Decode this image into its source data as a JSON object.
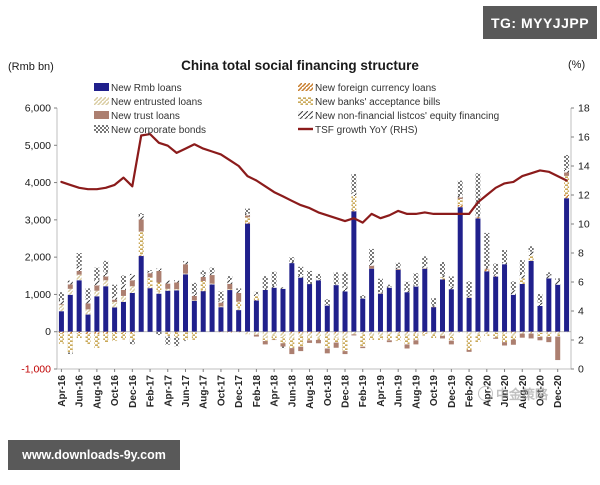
{
  "badges": {
    "top_right": "TG: MYYJJPP",
    "bottom_left": "www.downloads-9y.com"
  },
  "watermark": {
    "text": "中金策略"
  },
  "chart_data": {
    "type": "bar",
    "subtype": "stacked-bars-with-line",
    "title": "China total social financing structure",
    "left_axis_unit": "(Rmb bn)",
    "right_axis_unit": "(%)",
    "left_axis": {
      "min": -1000,
      "max": 6000,
      "step": 1000,
      "tick_labels": [
        "6,000",
        "5,000",
        "4,000",
        "3,000",
        "2,000",
        "1,000",
        "0",
        "-1,000"
      ],
      "negative_label_color": "#C00000"
    },
    "right_axis": {
      "min": 0,
      "max": 18,
      "step": 2,
      "tick_labels": [
        "18",
        "16",
        "14",
        "12",
        "10",
        "8",
        "6",
        "4",
        "2",
        "0"
      ]
    },
    "x_tick_labels": [
      "Apr-16",
      "Jun-16",
      "Aug-16",
      "Oct-16",
      "Dec-16",
      "Feb-17",
      "Apr-17",
      "Jun-17",
      "Aug-17",
      "Oct-17",
      "Dec-17",
      "Feb-18",
      "Apr-18",
      "Jun-18",
      "Aug-18",
      "Oct-18",
      "Dec-18",
      "Feb-19",
      "Apr-19",
      "Jun-19",
      "Aug-19",
      "Oct-19",
      "Dec-19",
      "Feb-20",
      "Apr-20",
      "Jun-20",
      "Aug-20",
      "Oct-20",
      "Dec-20"
    ],
    "x_tick_every": 2,
    "n_months": 58,
    "series": [
      {
        "key": "rmb",
        "name": "New Rmb loans",
        "style": "solid",
        "color": "#20208C",
        "values": [
          550,
          990,
          1380,
          460,
          950,
          1220,
          650,
          800,
          1040,
          2030,
          1170,
          1020,
          1100,
          1110,
          1540,
          830,
          1090,
          1270,
          660,
          1120,
          580,
          2900,
          840,
          1120,
          1180,
          1150,
          1840,
          1450,
          1280,
          1380,
          700,
          1250,
          1080,
          3230,
          890,
          1690,
          1020,
          1180,
          1660,
          1060,
          1210,
          1690,
          660,
          1400,
          1140,
          3340,
          910,
          3040,
          1620,
          1480,
          1810,
          990,
          1280,
          1900,
          690,
          1430,
          1260,
          3580
        ]
      },
      {
        "key": "fx",
        "name": "New foreign currency loans",
        "style": "hatch-diagonal",
        "color": "#C87E2E",
        "values": [
          -40,
          -50,
          -40,
          -60,
          -60,
          -50,
          -30,
          -30,
          -40,
          20,
          10,
          0,
          -10,
          -20,
          -10,
          0,
          10,
          0,
          -10,
          -20,
          -10,
          30,
          10,
          0,
          -10,
          -20,
          -30,
          -40,
          -30,
          -30,
          -30,
          -30,
          -20,
          30,
          -10,
          0,
          -10,
          -10,
          -20,
          -20,
          -20,
          -20,
          -10,
          -10,
          -10,
          60,
          10,
          30,
          50,
          20,
          -10,
          -20,
          -10,
          -20,
          -10,
          -10,
          -10,
          100
        ]
      },
      {
        "key": "entrusted",
        "name": "New entrusted loans",
        "style": "hatch-diagonal-light",
        "color": "#D9CCA1",
        "values": [
          170,
          160,
          150,
          140,
          150,
          160,
          150,
          160,
          180,
          30,
          40,
          60,
          50,
          30,
          20,
          10,
          20,
          10,
          10,
          10,
          60,
          -70,
          -80,
          -160,
          -90,
          -130,
          -160,
          -90,
          -120,
          -140,
          -90,
          -130,
          -150,
          -70,
          -50,
          -110,
          -120,
          -70,
          -40,
          -100,
          -50,
          -20,
          -70,
          -100,
          -130,
          -30,
          -100,
          -60,
          -60,
          -30,
          -50,
          -90,
          -40,
          -30,
          -20,
          -40,
          -60,
          -10
        ]
      },
      {
        "key": "bills",
        "name": "New banks' acceptance bills",
        "style": "dash-horizontal",
        "color": "#BD9430",
        "values": [
          -280,
          -510,
          -130,
          -280,
          -380,
          -230,
          -220,
          -180,
          -190,
          610,
          240,
          240,
          -120,
          -130,
          -220,
          -220,
          240,
          10,
          10,
          10,
          170,
          140,
          110,
          -90,
          -110,
          -160,
          -250,
          -270,
          -80,
          -50,
          -330,
          -130,
          -350,
          380,
          -340,
          -110,
          -90,
          -150,
          -190,
          -220,
          -160,
          -60,
          -100,
          60,
          -100,
          160,
          -390,
          -220,
          -60,
          -130,
          -220,
          -100,
          150,
          140,
          -110,
          -90,
          -60,
          500
        ]
      },
      {
        "key": "trust",
        "name": "New trust loans",
        "style": "solid",
        "color": "#AC7F70",
        "values": [
          20,
          120,
          100,
          160,
          140,
          100,
          60,
          160,
          160,
          320,
          110,
          310,
          140,
          180,
          250,
          120,
          110,
          230,
          100,
          140,
          230,
          50,
          -50,
          -90,
          -10,
          -90,
          -160,
          -120,
          -70,
          -90,
          -130,
          -140,
          -80,
          -30,
          -40,
          80,
          10,
          -50,
          20,
          -110,
          -110,
          10,
          10,
          -70,
          -100,
          40,
          -50,
          10,
          20,
          -30,
          -90,
          -140,
          -110,
          -130,
          -90,
          -140,
          -630,
          90
        ]
      },
      {
        "key": "equity",
        "name": "New non-financial listcos' equity financing",
        "style": "hatch-slash",
        "color": "#3C3C3C",
        "values": [
          110,
          100,
          140,
          110,
          150,
          110,
          100,
          150,
          170,
          120,
          60,
          70,
          80,
          60,
          80,
          70,
          60,
          50,
          60,
          130,
          80,
          50,
          40,
          40,
          50,
          40,
          30,
          70,
          10,
          30,
          20,
          20,
          130,
          90,
          10,
          120,
          30,
          30,
          40,
          60,
          30,
          60,
          30,
          50,
          70,
          60,
          50,
          20,
          30,
          30,
          50,
          120,
          130,
          110,
          90,
          80,
          130,
          100
        ]
      },
      {
        "key": "bonds",
        "name": "New corporate bonds",
        "style": "dots",
        "color": "#3F3F3F",
        "values": [
          210,
          -40,
          340,
          290,
          330,
          310,
          300,
          240,
          -110,
          50,
          20,
          -90,
          -220,
          -240,
          -20,
          280,
          110,
          150,
          240,
          80,
          40,
          130,
          70,
          330,
          380,
          -40,
          130,
          220,
          340,
          140,
          150,
          320,
          380,
          500,
          80,
          330,
          360,
          50,
          130,
          220,
          330,
          260,
          200,
          360,
          270,
          390,
          380,
          1150,
          930,
          300,
          330,
          240,
          360,
          140,
          230,
          80,
          40,
          370
        ]
      }
    ],
    "line": {
      "key": "tsf",
      "name": "TSF growth YoY (RHS)",
      "color": "#8B1B1B",
      "axis": "right",
      "values": [
        12.9,
        12.7,
        12.5,
        12.4,
        12.4,
        12.5,
        12.7,
        13.2,
        12.6,
        16.1,
        16.2,
        15.6,
        15.4,
        14.9,
        15.2,
        15.5,
        15.2,
        15.0,
        14.8,
        14.4,
        14.0,
        13.3,
        13.0,
        12.6,
        12.2,
        11.9,
        11.6,
        11.3,
        11.1,
        10.8,
        10.6,
        10.4,
        10.2,
        10.4,
        10.1,
        10.7,
        10.4,
        10.6,
        10.9,
        10.7,
        10.7,
        10.8,
        10.7,
        10.7,
        10.7,
        10.7,
        10.7,
        11.5,
        12.0,
        12.5,
        12.8,
        12.9,
        13.3,
        13.5,
        13.7,
        13.6,
        13.3,
        13.0
      ]
    },
    "legend": [
      {
        "label": "New Rmb loans",
        "swatch": "rmb",
        "col": 0,
        "row": 0
      },
      {
        "label": "New entrusted loans",
        "swatch": "entrusted",
        "col": 0,
        "row": 1
      },
      {
        "label": "New trust loans",
        "swatch": "trust",
        "col": 0,
        "row": 2
      },
      {
        "label": "New corporate bonds",
        "swatch": "bonds",
        "col": 0,
        "row": 3
      },
      {
        "label": "New foreign currency loans",
        "swatch": "fx",
        "col": 1,
        "row": 0
      },
      {
        "label": "New banks' acceptance bills",
        "swatch": "bills",
        "col": 1,
        "row": 1
      },
      {
        "label": "New non-financial listcos' equity financing",
        "swatch": "equity",
        "col": 1,
        "row": 2
      },
      {
        "label": "TSF growth YoY (RHS)",
        "swatch": "tsf",
        "col": 1,
        "row": 3
      }
    ]
  }
}
